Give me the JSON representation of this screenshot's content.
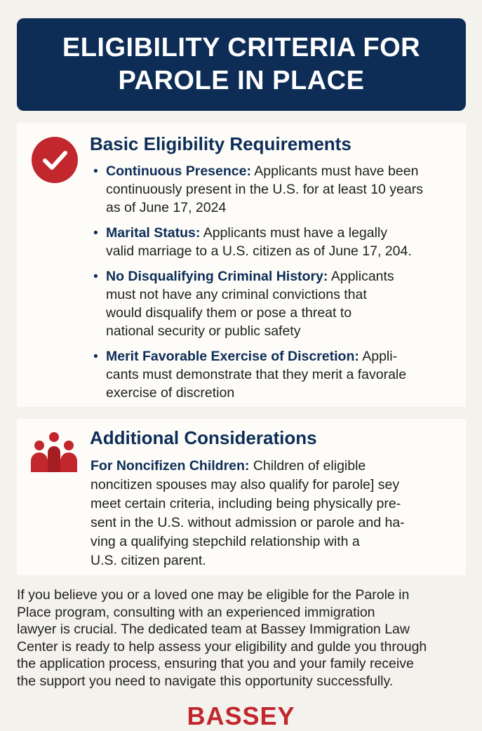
{
  "header": {
    "title": "ELIGIBILITY CRITERIA FOR\nPAROLE IN PLACE"
  },
  "basic": {
    "icon": "check-circle-icon",
    "heading": "Basic Eligibility Requirements",
    "items": [
      {
        "label": "Continuous Presence:",
        "text": " Applicants must have been\ncontinuously present in the U.S. for at least 10 years\nas of June 17, 2024"
      },
      {
        "label": "Marital Status:",
        "text": " Applicants must have a legally\nvalid marriage to a U.S. citizen as of June 17, 204."
      },
      {
        "label": "No Disqualifying Criminal History:",
        "text": " Applicants\nmust not have any criminal convictions that\nwould disqualify them or pose a threat to\nnational security or public safety"
      },
      {
        "label": "Merit Favorable Exercise of Discretion:",
        "text": " Appli-\ncants must demonstrate that they merit a favorale\nexercise of discretion"
      }
    ]
  },
  "additional": {
    "icon": "family-icon",
    "heading": "Additional Considerations",
    "label": "For Noncifizen Children:",
    "text": " Children of eligible\nnoncitizen spouses may also qualify for parole] sey\nmeet certain criteria, including being physically pre-\nsent in the U.S. without admission or parole and ha-\nving a qualifying stepchild relationship with a\nU.S. citizen parent."
  },
  "footer": {
    "text": "If you believe you or a loved one may be eligible for the Parole in\nPlace program, consulting with an experienced immigration\nlawyer is crucial. The dedicated team at Bassey Immigration Law\nCenter is ready to help assess your eligibility and gulde you through\nthe application process, ensuring that you and your family receive\nthe support you need to navigate this opportunity successfully."
  },
  "logo": {
    "text": "BASSEY"
  },
  "colors": {
    "navy": "#0d2d57",
    "red": "#c1272d",
    "background": "#f4f2ed"
  }
}
